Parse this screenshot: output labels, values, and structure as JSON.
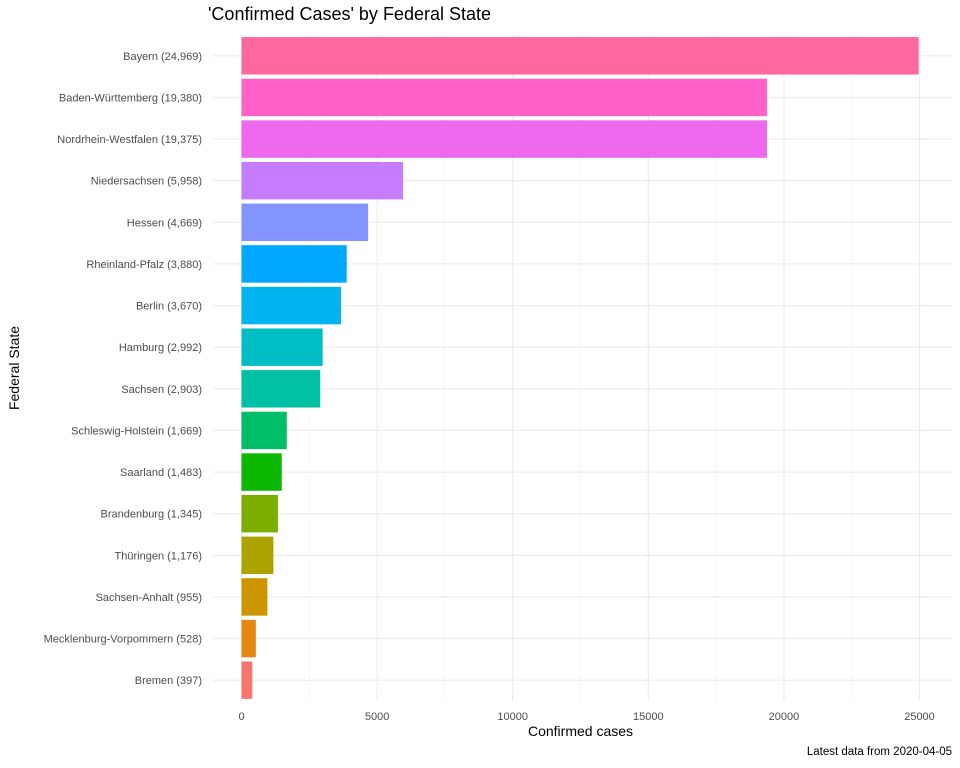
{
  "chart_data": {
    "type": "bar",
    "orientation": "horizontal",
    "title": "'Confirmed Cases' by Federal State",
    "xlabel": "Confirmed cases",
    "ylabel": "Federal State",
    "caption": "Latest data from 2020-04-05",
    "xlim": [
      0,
      25000
    ],
    "xticks": [
      "0",
      "5000",
      "10000",
      "15000",
      "20000",
      "25000"
    ],
    "xtick_values": [
      0,
      5000,
      10000,
      15000,
      20000,
      25000
    ],
    "grid": true,
    "legend": "none",
    "categories": [
      "Bayern (24,969)",
      "Baden-Württemberg (19,380)",
      "Nordrhein-Westfalen (19,375)",
      "Niedersachsen (5,958)",
      "Hessen (4,669)",
      "Rheinland-Pfalz (3,880)",
      "Berlin (3,670)",
      "Hamburg (2,992)",
      "Sachsen (2,903)",
      "Schleswig-Holstein (1,669)",
      "Saarland (1,483)",
      "Brandenburg (1,345)",
      "Thüringen (1,176)",
      "Sachsen-Anhalt (955)",
      "Mecklenburg-Vorpommern (528)",
      "Bremen (397)"
    ],
    "values": [
      24969,
      19380,
      19375,
      5958,
      4669,
      3880,
      3670,
      2992,
      2903,
      1669,
      1483,
      1345,
      1176,
      955,
      528,
      397
    ],
    "colors": [
      "#FF689F",
      "#FF61C9",
      "#ED68ED",
      "#C77CFF",
      "#8494FF",
      "#00A9FF",
      "#00B4EF",
      "#00BFC4",
      "#00C1A3",
      "#00BE67",
      "#0CB702",
      "#7CAE00",
      "#ABA300",
      "#CD9600",
      "#E68613",
      "#F8766D"
    ]
  }
}
